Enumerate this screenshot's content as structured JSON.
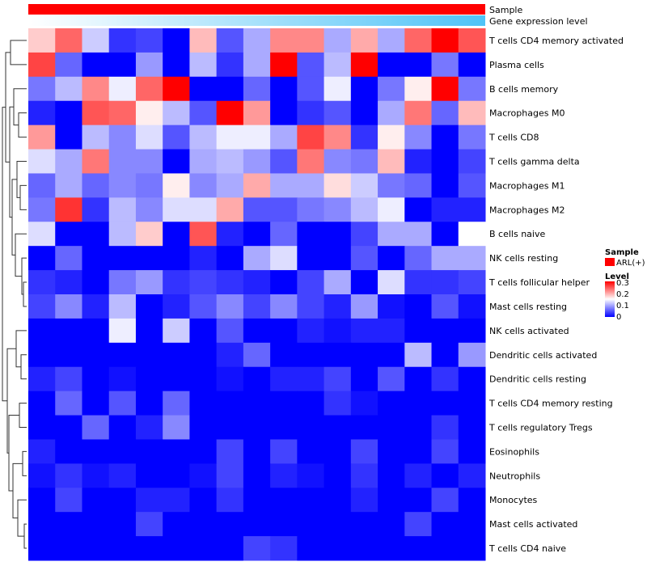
{
  "chart_data": {
    "type": "heatmap",
    "annotations": [
      {
        "name": "Sample",
        "color": "#ff0000"
      },
      {
        "name": "Gene expression level",
        "gradient": [
          "#ffffff",
          "#4fc3f7"
        ]
      }
    ],
    "rows": [
      "T cells CD4 memory activated",
      "Plasma cells",
      "B cells memory",
      "Macrophages M0",
      "T cells CD8",
      "T cells gamma delta",
      "Macrophages M1",
      "Macrophages M2",
      "B cells naive",
      "NK cells resting",
      "T cells follicular helper",
      "Mast cells resting",
      "NK cells activated",
      "Dendritic cells activated",
      "Dendritic cells resting",
      "T cells CD4 memory resting",
      "T cells regulatory  Tregs",
      "Eosinophils",
      "Neutrophils",
      "Monocytes",
      "Mast cells activated",
      "T cells CD4 naive"
    ],
    "values": [
      [
        0.18,
        0.24,
        0.12,
        0.03,
        0.04,
        0.0,
        0.19,
        0.05,
        0.1,
        0.22,
        0.22,
        0.1,
        0.2,
        0.1,
        0.24,
        0.3,
        0.25
      ],
      [
        0.26,
        0.06,
        0.0,
        0.0,
        0.09,
        0.0,
        0.11,
        0.03,
        0.1,
        0.3,
        0.05,
        0.11,
        0.3,
        0.0,
        0.0,
        0.07,
        0.0
      ],
      [
        0.07,
        0.11,
        0.22,
        0.14,
        0.24,
        0.3,
        0.0,
        0.0,
        0.06,
        0.0,
        0.05,
        0.14,
        0.0,
        0.07,
        0.16,
        0.3,
        0.07
      ],
      [
        0.02,
        0.0,
        0.25,
        0.24,
        0.16,
        0.11,
        0.05,
        0.3,
        0.21,
        0.0,
        0.03,
        0.05,
        0.0,
        0.1,
        0.23,
        0.06,
        0.19
      ],
      [
        0.21,
        0.0,
        0.11,
        0.08,
        0.13,
        0.05,
        0.11,
        0.14,
        0.14,
        0.1,
        0.26,
        0.22,
        0.03,
        0.16,
        0.08,
        0.0,
        0.07
      ],
      [
        0.13,
        0.1,
        0.23,
        0.08,
        0.08,
        0.0,
        0.1,
        0.11,
        0.09,
        0.05,
        0.23,
        0.08,
        0.07,
        0.19,
        0.02,
        0.0,
        0.04
      ],
      [
        0.06,
        0.1,
        0.06,
        0.08,
        0.07,
        0.16,
        0.08,
        0.1,
        0.2,
        0.1,
        0.1,
        0.17,
        0.12,
        0.07,
        0.06,
        0.0,
        0.05
      ],
      [
        0.07,
        0.27,
        0.03,
        0.11,
        0.08,
        0.13,
        0.13,
        0.2,
        0.05,
        0.05,
        0.07,
        0.08,
        0.11,
        0.14,
        0.0,
        0.02,
        0.02
      ],
      [
        0.13,
        0.0,
        0.0,
        0.11,
        0.18,
        0.0,
        0.25,
        0.02,
        0.0,
        0.06,
        0.0,
        0.0,
        0.04,
        0.1,
        0.1,
        0.0,
        0.15
      ],
      [
        0.0,
        0.06,
        0.0,
        0.0,
        0.0,
        0.0,
        0.02,
        0.0,
        0.1,
        0.13,
        0.0,
        0.0,
        0.05,
        0.0,
        0.06,
        0.1,
        0.1
      ],
      [
        0.03,
        0.02,
        0.0,
        0.07,
        0.09,
        0.03,
        0.04,
        0.03,
        0.02,
        0.0,
        0.04,
        0.1,
        0.0,
        0.13,
        0.03,
        0.03,
        0.04
      ],
      [
        0.04,
        0.08,
        0.02,
        0.11,
        0.0,
        0.02,
        0.05,
        0.08,
        0.04,
        0.08,
        0.04,
        0.02,
        0.09,
        0.01,
        0.0,
        0.05,
        0.01
      ],
      [
        0.0,
        0.0,
        0.0,
        0.14,
        0.0,
        0.12,
        0.0,
        0.05,
        0.0,
        0.0,
        0.02,
        0.01,
        0.02,
        0.02,
        0.0,
        0.0,
        0.0
      ],
      [
        0.0,
        0.0,
        0.0,
        0.0,
        0.0,
        0.0,
        0.0,
        0.02,
        0.06,
        0.0,
        0.0,
        0.0,
        0.0,
        0.0,
        0.11,
        0.0,
        0.09
      ],
      [
        0.02,
        0.04,
        0.0,
        0.01,
        0.0,
        0.0,
        0.0,
        0.01,
        0.0,
        0.02,
        0.02,
        0.04,
        0.0,
        0.05,
        0.0,
        0.03,
        0.0
      ],
      [
        0.0,
        0.06,
        0.0,
        0.05,
        0.0,
        0.06,
        0.0,
        0.0,
        0.0,
        0.0,
        0.0,
        0.03,
        0.01,
        0.0,
        0.0,
        0.0,
        0.0
      ],
      [
        0.0,
        0.0,
        0.06,
        0.0,
        0.02,
        0.08,
        0.0,
        0.0,
        0.0,
        0.0,
        0.0,
        0.0,
        0.0,
        0.0,
        0.0,
        0.03,
        0.0
      ],
      [
        0.02,
        0.0,
        0.0,
        0.0,
        0.0,
        0.0,
        0.0,
        0.04,
        0.0,
        0.04,
        0.0,
        0.0,
        0.04,
        0.0,
        0.0,
        0.04,
        0.0
      ],
      [
        0.01,
        0.03,
        0.01,
        0.02,
        0.0,
        0.0,
        0.01,
        0.04,
        0.0,
        0.02,
        0.01,
        0.0,
        0.03,
        0.0,
        0.02,
        0.0,
        0.02
      ],
      [
        0.0,
        0.04,
        0.0,
        0.0,
        0.02,
        0.02,
        0.0,
        0.03,
        0.0,
        0.0,
        0.0,
        0.0,
        0.02,
        0.0,
        0.0,
        0.04,
        0.0
      ],
      [
        0.0,
        0.0,
        0.0,
        0.0,
        0.04,
        0.0,
        0.0,
        0.0,
        0.0,
        0.0,
        0.0,
        0.0,
        0.0,
        0.0,
        0.04,
        0.0,
        0.0
      ],
      [
        0.0,
        0.0,
        0.0,
        0.0,
        0.0,
        0.0,
        0.0,
        0.0,
        0.04,
        0.03,
        0.0,
        0.0,
        0.0,
        0.0,
        0.0,
        0.0,
        0.0
      ]
    ],
    "color_scale": {
      "low": "#0000ff",
      "mid": "#ffffff",
      "high": "#ff0000",
      "domain": [
        0,
        0.15,
        0.3
      ]
    },
    "legend": {
      "sample_title": "Sample",
      "sample_items": [
        {
          "label": "ARL(+)",
          "color": "#ff0000"
        }
      ],
      "level_title": "Level",
      "level_ticks": [
        "0.3",
        "0.2",
        "0.1",
        "0"
      ]
    }
  }
}
